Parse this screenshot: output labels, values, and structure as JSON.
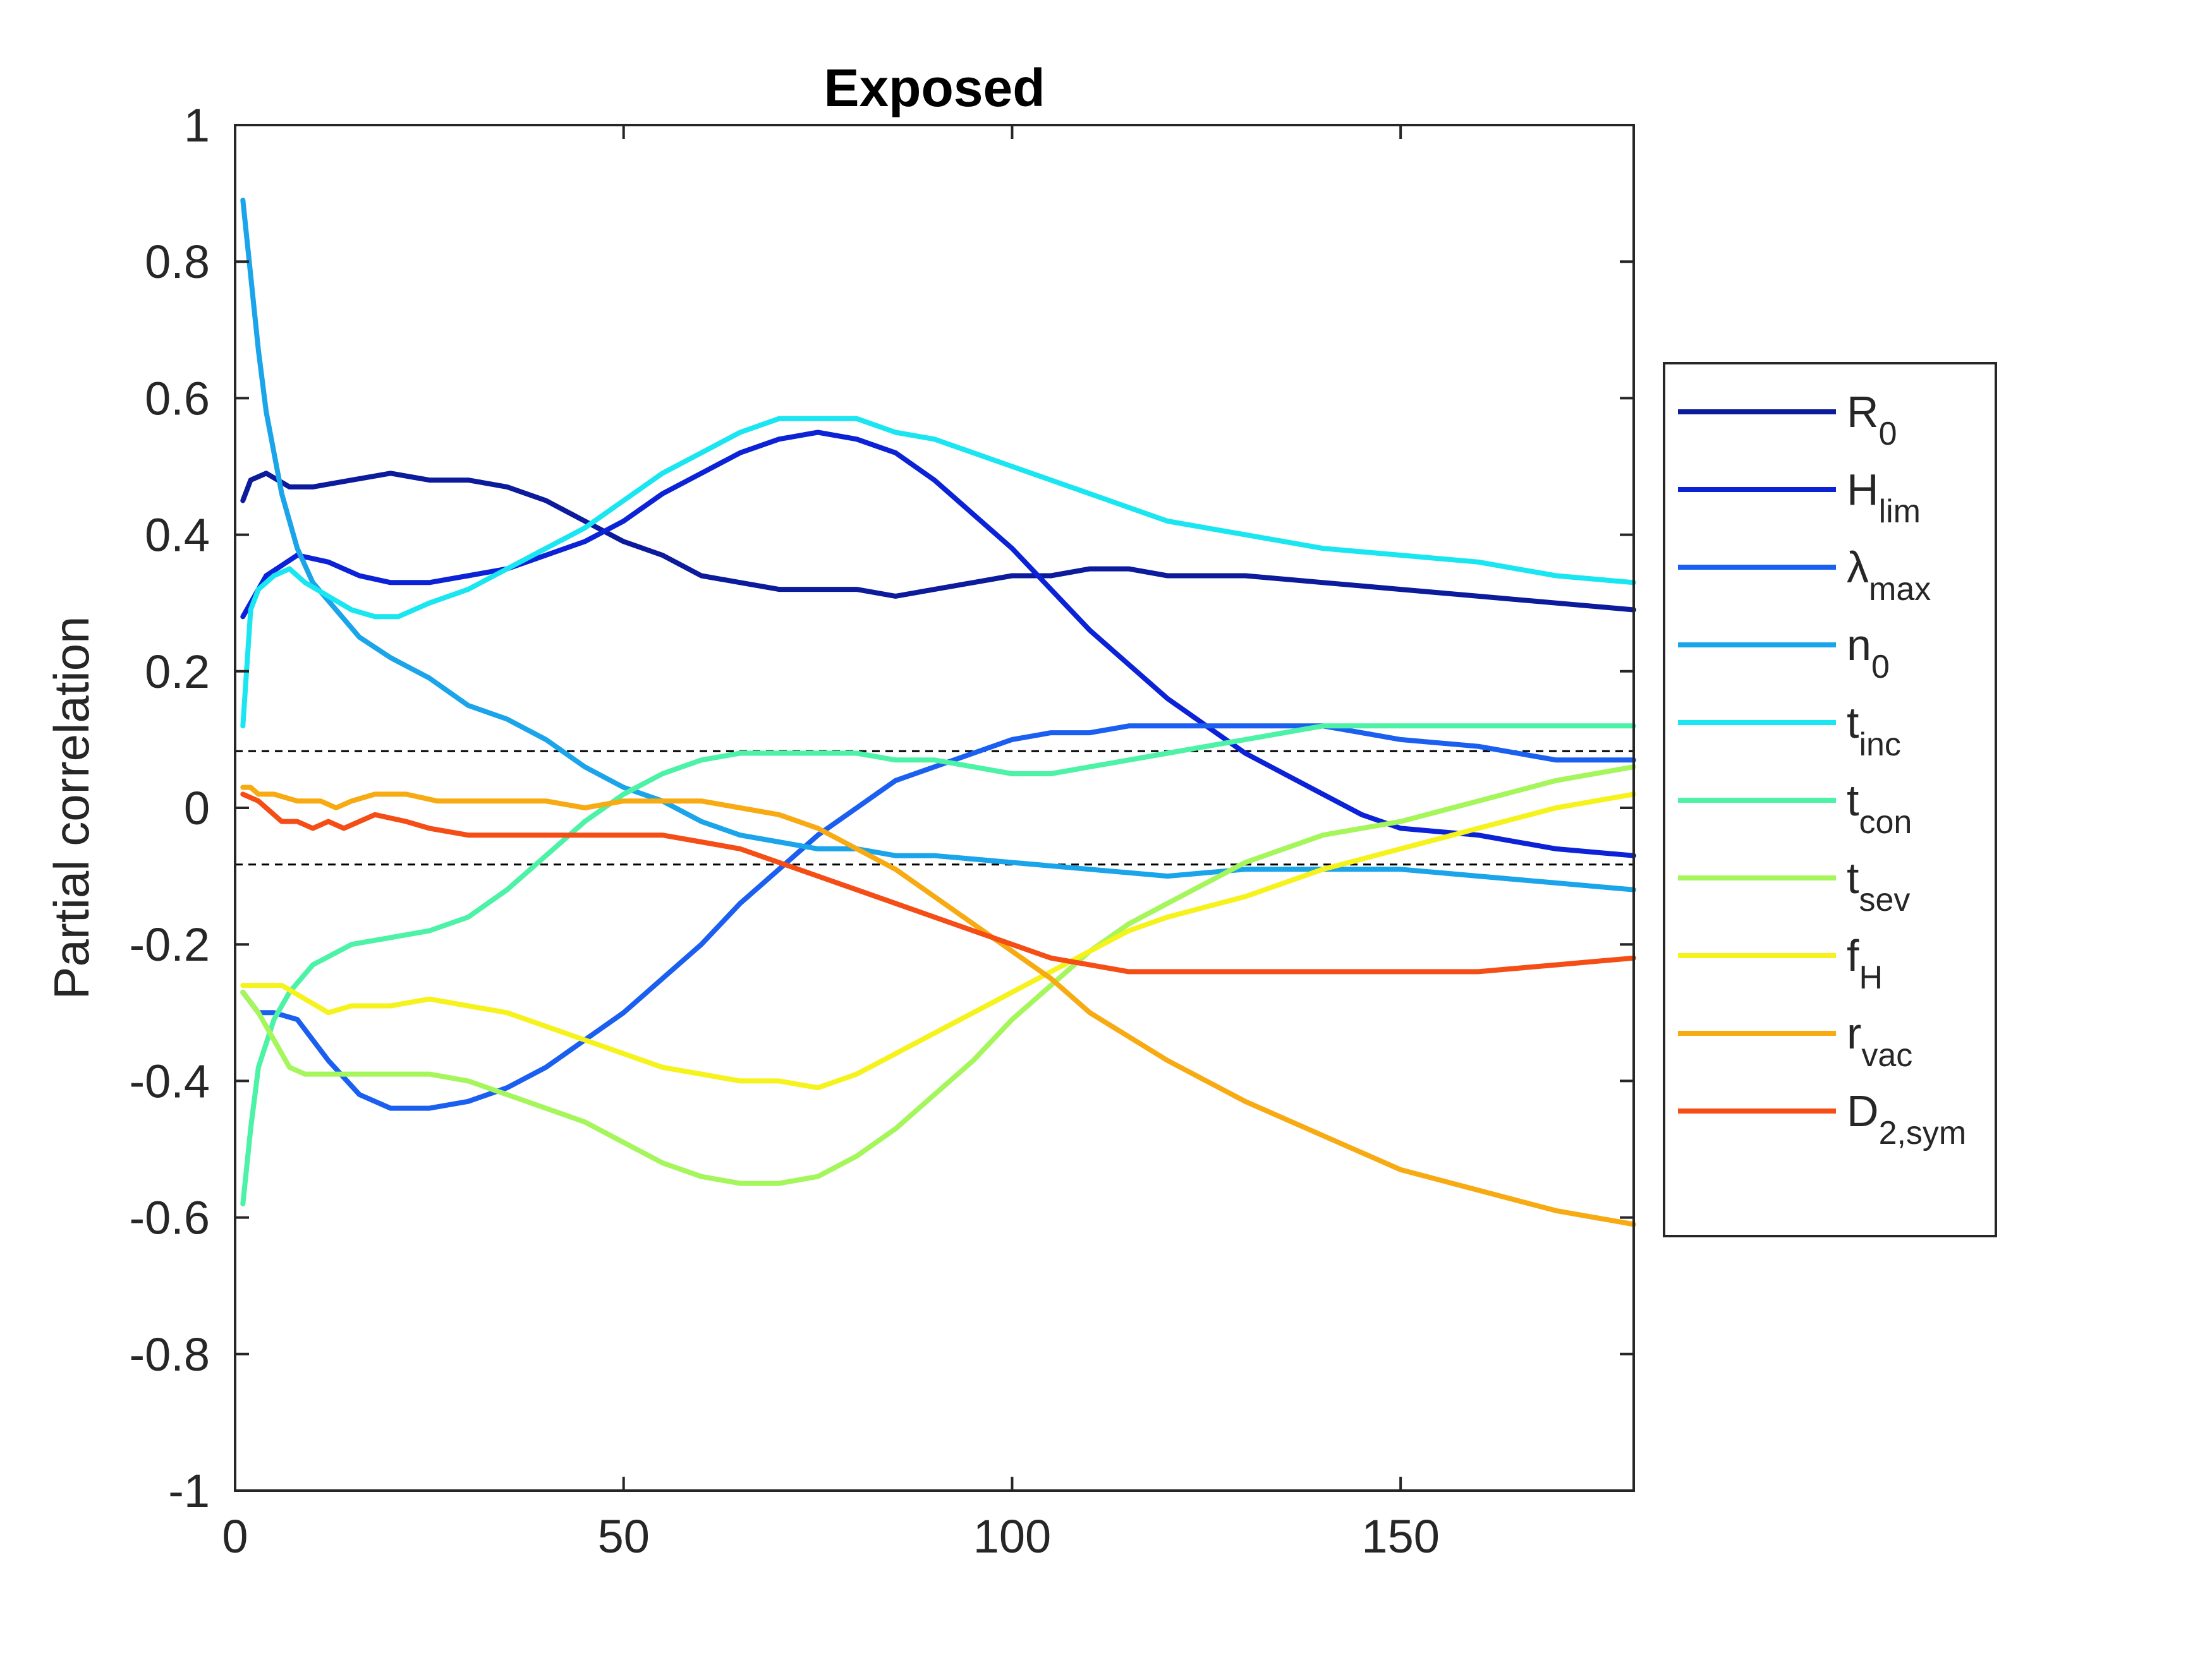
{
  "chart_data": {
    "type": "line",
    "title": "Exposed",
    "xlabel": "",
    "ylabel": "Partial correlation",
    "xlim": [
      0,
      180
    ],
    "ylim": [
      -1,
      1
    ],
    "xticks": [
      "0",
      "50",
      "100",
      "150"
    ],
    "yticks": [
      "1",
      "0.8",
      "0.6",
      "0.4",
      "0.2",
      "0",
      "-0.2",
      "-0.4",
      "-0.6",
      "-0.8",
      "-1"
    ],
    "grid": false,
    "legend_position": "outside-right",
    "threshold_lines": [
      0.083,
      -0.083
    ],
    "series": [
      {
        "name": "R",
        "sub": "0",
        "color": "#0c1a9c",
        "x": [
          1,
          2,
          4,
          7,
          10,
          15,
          20,
          25,
          30,
          35,
          40,
          45,
          50,
          55,
          60,
          65,
          70,
          75,
          80,
          85,
          90,
          95,
          100,
          105,
          110,
          115,
          120,
          130,
          140,
          150,
          160,
          170,
          180
        ],
        "y": [
          0.45,
          0.48,
          0.49,
          0.47,
          0.47,
          0.48,
          0.49,
          0.48,
          0.48,
          0.47,
          0.45,
          0.42,
          0.39,
          0.37,
          0.34,
          0.33,
          0.32,
          0.32,
          0.32,
          0.31,
          0.32,
          0.33,
          0.34,
          0.34,
          0.35,
          0.35,
          0.34,
          0.34,
          0.33,
          0.32,
          0.31,
          0.3,
          0.29
        ]
      },
      {
        "name": "H",
        "sub": "lim",
        "color": "#0c22d6",
        "x": [
          1,
          4,
          8,
          12,
          16,
          20,
          25,
          30,
          35,
          40,
          45,
          50,
          55,
          60,
          65,
          70,
          75,
          80,
          85,
          90,
          95,
          100,
          105,
          110,
          115,
          120,
          125,
          130,
          135,
          140,
          145,
          150,
          160,
          170,
          180
        ],
        "y": [
          0.28,
          0.34,
          0.37,
          0.36,
          0.34,
          0.33,
          0.33,
          0.34,
          0.35,
          0.37,
          0.39,
          0.42,
          0.46,
          0.49,
          0.52,
          0.54,
          0.55,
          0.54,
          0.52,
          0.48,
          0.43,
          0.38,
          0.32,
          0.26,
          0.21,
          0.16,
          0.12,
          0.08,
          0.05,
          0.02,
          -0.01,
          -0.03,
          -0.04,
          -0.06,
          -0.07
        ]
      },
      {
        "name": "λ",
        "sub": "max",
        "color": "#1b5ff0",
        "x": [
          1,
          3,
          5,
          8,
          12,
          16,
          20,
          25,
          30,
          35,
          40,
          45,
          50,
          55,
          60,
          65,
          70,
          75,
          80,
          85,
          90,
          95,
          100,
          105,
          110,
          115,
          120,
          125,
          130,
          135,
          140,
          145,
          150,
          160,
          170,
          180
        ],
        "y": [
          -0.27,
          -0.3,
          -0.3,
          -0.31,
          -0.37,
          -0.42,
          -0.44,
          -0.44,
          -0.43,
          -0.41,
          -0.38,
          -0.34,
          -0.3,
          -0.25,
          -0.2,
          -0.14,
          -0.09,
          -0.04,
          0.0,
          0.04,
          0.06,
          0.08,
          0.1,
          0.11,
          0.11,
          0.12,
          0.12,
          0.12,
          0.12,
          0.12,
          0.12,
          0.11,
          0.1,
          0.09,
          0.07,
          0.07
        ]
      },
      {
        "name": "n",
        "sub": "0",
        "color": "#1aa4ea",
        "x": [
          1,
          2,
          3,
          4,
          6,
          8,
          10,
          13,
          16,
          20,
          25,
          30,
          35,
          40,
          45,
          50,
          55,
          60,
          65,
          70,
          75,
          80,
          85,
          90,
          100,
          110,
          120,
          130,
          140,
          150,
          160,
          170,
          180
        ],
        "y": [
          0.89,
          0.78,
          0.67,
          0.58,
          0.46,
          0.38,
          0.33,
          0.29,
          0.25,
          0.22,
          0.19,
          0.15,
          0.13,
          0.1,
          0.06,
          0.03,
          0.01,
          -0.02,
          -0.04,
          -0.05,
          -0.06,
          -0.06,
          -0.07,
          -0.07,
          -0.08,
          -0.09,
          -0.1,
          -0.09,
          -0.09,
          -0.09,
          -0.1,
          -0.11,
          -0.12
        ]
      },
      {
        "name": "t",
        "sub": "inc",
        "color": "#1ae6f2",
        "x": [
          1,
          2,
          3,
          5,
          7,
          9,
          12,
          15,
          18,
          21,
          25,
          30,
          35,
          40,
          45,
          50,
          55,
          60,
          65,
          70,
          75,
          80,
          85,
          90,
          100,
          110,
          120,
          130,
          140,
          150,
          160,
          170,
          180
        ],
        "y": [
          0.12,
          0.29,
          0.32,
          0.34,
          0.35,
          0.33,
          0.31,
          0.29,
          0.28,
          0.28,
          0.3,
          0.32,
          0.35,
          0.38,
          0.41,
          0.45,
          0.49,
          0.52,
          0.55,
          0.57,
          0.57,
          0.57,
          0.55,
          0.54,
          0.5,
          0.46,
          0.42,
          0.4,
          0.38,
          0.37,
          0.36,
          0.34,
          0.33
        ]
      },
      {
        "name": "t",
        "sub": "con",
        "color": "#4cf2a6",
        "x": [
          1,
          2,
          3,
          5,
          7,
          10,
          15,
          20,
          25,
          30,
          35,
          40,
          45,
          50,
          55,
          60,
          65,
          70,
          75,
          80,
          85,
          90,
          95,
          100,
          105,
          110,
          120,
          130,
          140,
          150,
          160,
          170,
          180
        ],
        "y": [
          -0.58,
          -0.47,
          -0.38,
          -0.31,
          -0.27,
          -0.23,
          -0.2,
          -0.19,
          -0.18,
          -0.16,
          -0.12,
          -0.07,
          -0.02,
          0.02,
          0.05,
          0.07,
          0.08,
          0.08,
          0.08,
          0.08,
          0.07,
          0.07,
          0.06,
          0.05,
          0.05,
          0.06,
          0.08,
          0.1,
          0.12,
          0.12,
          0.12,
          0.12,
          0.12
        ]
      },
      {
        "name": "t",
        "sub": "sev",
        "color": "#a4f65a",
        "x": [
          1,
          3,
          5,
          7,
          9,
          12,
          15,
          20,
          25,
          30,
          35,
          40,
          45,
          50,
          55,
          60,
          65,
          70,
          75,
          80,
          85,
          90,
          95,
          100,
          105,
          110,
          115,
          120,
          130,
          140,
          150,
          160,
          170,
          180
        ],
        "y": [
          -0.27,
          -0.3,
          -0.34,
          -0.38,
          -0.39,
          -0.39,
          -0.39,
          -0.39,
          -0.39,
          -0.4,
          -0.42,
          -0.44,
          -0.46,
          -0.49,
          -0.52,
          -0.54,
          -0.55,
          -0.55,
          -0.54,
          -0.51,
          -0.47,
          -0.42,
          -0.37,
          -0.31,
          -0.26,
          -0.21,
          -0.17,
          -0.14,
          -0.08,
          -0.04,
          -0.02,
          0.01,
          0.04,
          0.06
        ]
      },
      {
        "name": "f",
        "sub": "H",
        "color": "#f6f21c",
        "x": [
          1,
          3,
          6,
          9,
          12,
          15,
          20,
          25,
          30,
          35,
          40,
          45,
          50,
          55,
          60,
          65,
          70,
          75,
          80,
          85,
          90,
          95,
          100,
          105,
          110,
          115,
          120,
          130,
          140,
          150,
          160,
          170,
          180
        ],
        "y": [
          -0.26,
          -0.26,
          -0.26,
          -0.28,
          -0.3,
          -0.29,
          -0.29,
          -0.28,
          -0.29,
          -0.3,
          -0.32,
          -0.34,
          -0.36,
          -0.38,
          -0.39,
          -0.4,
          -0.4,
          -0.41,
          -0.39,
          -0.36,
          -0.33,
          -0.3,
          -0.27,
          -0.24,
          -0.21,
          -0.18,
          -0.16,
          -0.13,
          -0.09,
          -0.06,
          -0.03,
          0.0,
          0.02
        ]
      },
      {
        "name": "r",
        "sub": "vac",
        "color": "#f7aa12",
        "x": [
          1,
          2,
          3,
          5,
          8,
          11,
          13,
          15,
          18,
          22,
          26,
          30,
          35,
          40,
          45,
          50,
          55,
          60,
          65,
          70,
          75,
          80,
          85,
          90,
          95,
          100,
          105,
          110,
          120,
          130,
          140,
          150,
          160,
          170,
          180
        ],
        "y": [
          0.03,
          0.03,
          0.02,
          0.02,
          0.01,
          0.01,
          0.0,
          0.01,
          0.02,
          0.02,
          0.01,
          0.01,
          0.01,
          0.01,
          0.0,
          0.01,
          0.01,
          0.01,
          0.0,
          -0.01,
          -0.03,
          -0.06,
          -0.09,
          -0.13,
          -0.17,
          -0.21,
          -0.25,
          -0.3,
          -0.37,
          -0.43,
          -0.48,
          -0.53,
          -0.56,
          -0.59,
          -0.61
        ]
      },
      {
        "name": "D",
        "sub": "2,sym",
        "color": "#f44d16",
        "x": [
          1,
          3,
          4,
          6,
          8,
          10,
          12,
          14,
          16,
          18,
          22,
          25,
          30,
          35,
          40,
          45,
          50,
          55,
          60,
          65,
          70,
          75,
          80,
          85,
          90,
          95,
          100,
          105,
          110,
          115,
          120,
          130,
          140,
          150,
          160,
          170,
          180
        ],
        "y": [
          0.02,
          0.01,
          0.0,
          -0.02,
          -0.02,
          -0.03,
          -0.02,
          -0.03,
          -0.02,
          -0.01,
          -0.02,
          -0.03,
          -0.04,
          -0.04,
          -0.04,
          -0.04,
          -0.04,
          -0.04,
          -0.05,
          -0.06,
          -0.08,
          -0.1,
          -0.12,
          -0.14,
          -0.16,
          -0.18,
          -0.2,
          -0.22,
          -0.23,
          -0.24,
          -0.24,
          -0.24,
          -0.24,
          -0.24,
          -0.24,
          -0.23,
          -0.22
        ]
      }
    ]
  }
}
